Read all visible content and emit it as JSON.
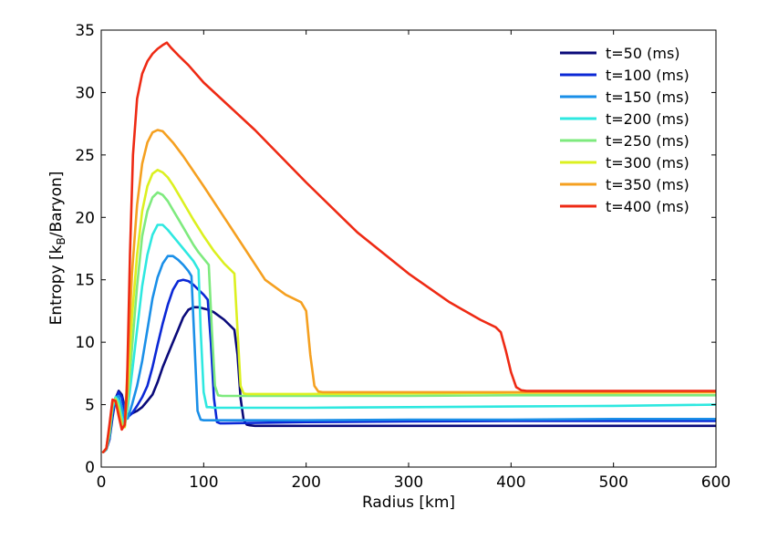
{
  "chart_data": {
    "type": "line",
    "title": "",
    "xlabel": "Radius [km]",
    "ylabel_prefix": "Entropy [k",
    "ylabel_sub": "B",
    "ylabel_suffix": "/Baryon]",
    "xlim": [
      0,
      600
    ],
    "ylim": [
      0,
      35
    ],
    "xticks": [
      0,
      100,
      200,
      300,
      400,
      500,
      600
    ],
    "yticks": [
      0,
      5,
      10,
      15,
      20,
      25,
      30,
      35
    ],
    "legend_position": "top-right",
    "series": [
      {
        "name": "t=50 (ms)",
        "color": "#0a0a7a",
        "x": [
          2,
          5,
          8,
          11,
          14,
          17,
          20,
          23,
          26,
          30,
          35,
          40,
          45,
          50,
          55,
          60,
          65,
          70,
          75,
          80,
          85,
          90,
          95,
          100,
          105,
          110,
          115,
          120,
          125,
          130,
          133,
          136,
          139,
          142,
          145,
          150,
          200,
          300,
          400,
          500,
          600
        ],
        "y": [
          1.2,
          1.4,
          2.2,
          4.0,
          5.5,
          6.1,
          5.8,
          4.8,
          4.2,
          4.3,
          4.5,
          4.8,
          5.3,
          5.8,
          6.8,
          8.0,
          9.0,
          10.0,
          11.0,
          12.0,
          12.6,
          12.8,
          12.8,
          12.7,
          12.6,
          12.4,
          12.1,
          11.8,
          11.4,
          11.0,
          9.0,
          5.5,
          3.8,
          3.4,
          3.35,
          3.3,
          3.3,
          3.3,
          3.3,
          3.3,
          3.3
        ]
      },
      {
        "name": "t=100 (ms)",
        "color": "#0b28d6",
        "x": [
          2,
          5,
          8,
          11,
          14,
          17,
          20,
          23,
          26,
          30,
          35,
          40,
          45,
          50,
          55,
          60,
          65,
          70,
          75,
          80,
          85,
          90,
          95,
          100,
          104,
          107,
          110,
          113,
          116,
          120,
          200,
          300,
          400,
          500,
          600
        ],
        "y": [
          1.2,
          1.4,
          2.3,
          4.2,
          5.4,
          6.0,
          5.6,
          4.5,
          4.0,
          4.3,
          4.9,
          5.6,
          6.5,
          8.0,
          9.8,
          11.5,
          13.0,
          14.2,
          14.9,
          15.0,
          14.9,
          14.6,
          14.2,
          13.8,
          13.4,
          10.0,
          5.5,
          3.6,
          3.5,
          3.5,
          3.6,
          3.65,
          3.7,
          3.7,
          3.7
        ]
      },
      {
        "name": "t=150 (ms)",
        "color": "#1a8fe8",
        "x": [
          2,
          5,
          8,
          11,
          14,
          17,
          20,
          23,
          26,
          30,
          35,
          40,
          45,
          50,
          55,
          60,
          65,
          70,
          75,
          80,
          85,
          88,
          91,
          94,
          97,
          100,
          200,
          300,
          400,
          500,
          600
        ],
        "y": [
          1.2,
          1.4,
          2.4,
          4.5,
          5.6,
          5.7,
          4.8,
          3.8,
          3.9,
          5.0,
          6.5,
          8.5,
          11.0,
          13.5,
          15.2,
          16.3,
          16.9,
          16.9,
          16.6,
          16.2,
          15.7,
          15.3,
          10.0,
          4.5,
          3.8,
          3.75,
          3.75,
          3.8,
          3.8,
          3.85,
          3.85
        ]
      },
      {
        "name": "t=200 (ms)",
        "color": "#2ee8e0",
        "x": [
          2,
          5,
          8,
          11,
          14,
          17,
          20,
          23,
          26,
          30,
          35,
          40,
          45,
          50,
          55,
          60,
          65,
          70,
          75,
          80,
          85,
          90,
          95,
          97,
          100,
          103,
          106,
          110,
          200,
          300,
          400,
          500,
          600
        ],
        "y": [
          1.2,
          1.4,
          2.6,
          4.8,
          5.6,
          5.3,
          4.0,
          3.3,
          4.8,
          7.5,
          11.0,
          14.5,
          17.0,
          18.6,
          19.4,
          19.4,
          19.0,
          18.5,
          18.0,
          17.5,
          17.0,
          16.5,
          15.8,
          11.0,
          6.0,
          4.8,
          4.8,
          4.75,
          4.75,
          4.8,
          4.85,
          4.9,
          5.0
        ]
      },
      {
        "name": "t=250 (ms)",
        "color": "#7eea7e",
        "x": [
          2,
          5,
          8,
          11,
          14,
          17,
          20,
          23,
          26,
          30,
          35,
          40,
          45,
          50,
          55,
          60,
          65,
          70,
          75,
          80,
          85,
          90,
          95,
          100,
          105,
          108,
          111,
          114,
          118,
          125,
          200,
          300,
          400,
          500,
          600
        ],
        "y": [
          1.2,
          1.5,
          2.8,
          5.0,
          5.5,
          5.0,
          3.6,
          3.2,
          5.5,
          9.5,
          14.5,
          18.5,
          20.5,
          21.6,
          22.0,
          21.8,
          21.3,
          20.6,
          19.9,
          19.2,
          18.5,
          17.8,
          17.2,
          16.7,
          16.2,
          11.0,
          6.5,
          5.75,
          5.7,
          5.7,
          5.7,
          5.7,
          5.75,
          5.75,
          5.75
        ]
      },
      {
        "name": "t=300 (ms)",
        "color": "#dcf020",
        "x": [
          2,
          5,
          8,
          11,
          14,
          17,
          20,
          23,
          26,
          30,
          35,
          40,
          45,
          50,
          55,
          60,
          65,
          70,
          75,
          80,
          90,
          100,
          110,
          120,
          130,
          133,
          136,
          139,
          142,
          150,
          200,
          300,
          400,
          500,
          600
        ],
        "y": [
          1.2,
          1.5,
          3.0,
          5.2,
          5.4,
          4.6,
          3.3,
          3.2,
          6.5,
          12.0,
          17.0,
          20.5,
          22.5,
          23.5,
          23.8,
          23.6,
          23.2,
          22.6,
          21.9,
          21.2,
          19.8,
          18.5,
          17.3,
          16.3,
          15.5,
          11.0,
          6.5,
          5.9,
          5.85,
          5.85,
          5.85,
          5.9,
          5.95,
          5.95,
          6.0
        ]
      },
      {
        "name": "t=350 (ms)",
        "color": "#f5a020",
        "x": [
          2,
          5,
          8,
          11,
          14,
          17,
          20,
          23,
          26,
          30,
          35,
          40,
          45,
          50,
          55,
          60,
          70,
          80,
          100,
          120,
          140,
          160,
          180,
          195,
          200,
          204,
          208,
          212,
          216,
          220,
          300,
          400,
          500,
          600
        ],
        "y": [
          1.2,
          1.5,
          3.2,
          5.3,
          5.3,
          4.3,
          3.1,
          3.3,
          8.5,
          15.5,
          21.0,
          24.3,
          26.0,
          26.8,
          27.0,
          26.9,
          26.0,
          24.9,
          22.5,
          20.0,
          17.5,
          15.0,
          13.8,
          13.2,
          12.5,
          9.0,
          6.5,
          6.05,
          6.0,
          6.0,
          6.0,
          6.0,
          6.0,
          6.0
        ]
      },
      {
        "name": "t=400 (ms)",
        "color": "#ee2a14",
        "x": [
          2,
          5,
          8,
          11,
          14,
          17,
          20,
          23,
          25,
          28,
          31,
          35,
          40,
          45,
          50,
          55,
          60,
          64,
          68,
          75,
          85,
          100,
          150,
          200,
          250,
          300,
          340,
          370,
          385,
          390,
          395,
          400,
          405,
          410,
          415,
          420,
          450,
          500,
          600
        ],
        "y": [
          1.2,
          1.5,
          3.4,
          5.4,
          5.3,
          4.1,
          3.0,
          3.4,
          6.0,
          17.0,
          25.0,
          29.5,
          31.5,
          32.5,
          33.1,
          33.5,
          33.8,
          34.0,
          33.6,
          33.0,
          32.2,
          30.8,
          27.0,
          22.8,
          18.8,
          15.5,
          13.2,
          11.8,
          11.2,
          10.8,
          9.3,
          7.6,
          6.4,
          6.15,
          6.1,
          6.1,
          6.1,
          6.1,
          6.1
        ]
      }
    ]
  }
}
